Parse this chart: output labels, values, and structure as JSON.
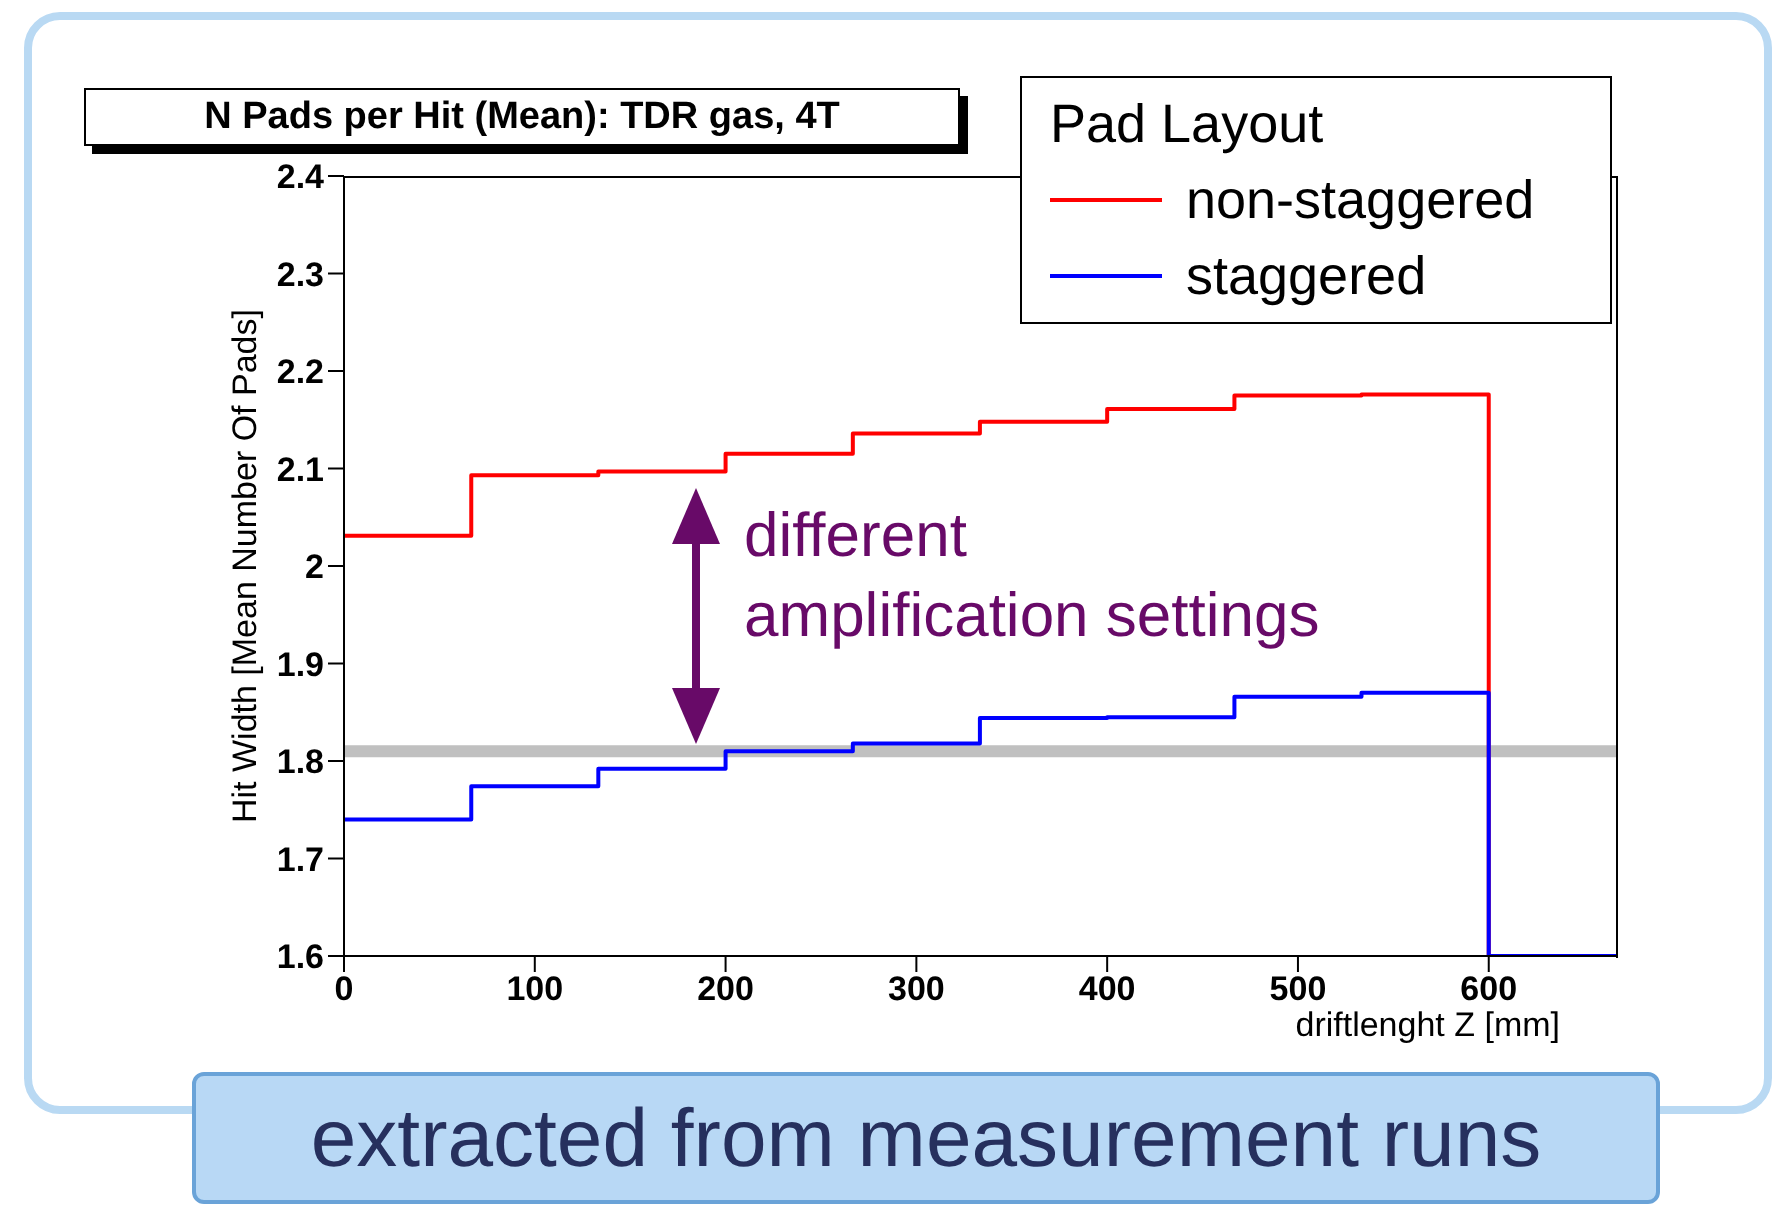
{
  "chart_data": {
    "type": "histogram",
    "title": "N Pads per Hit (Mean): TDR gas, 4T",
    "xlabel": "driftlenght Z [mm]",
    "ylabel": "Hit Width [Mean Number Of Pads]",
    "legend_title": "Pad Layout",
    "bins": [
      0,
      66.7,
      133.3,
      200,
      266.7,
      333.3,
      400,
      466.7,
      533.3,
      600,
      666.7
    ],
    "series": [
      {
        "name": "non-staggered",
        "color": "#ff0000",
        "values": [
          2.031,
          2.093,
          2.097,
          2.115,
          2.136,
          2.148,
          2.161,
          2.175,
          2.176,
          1.6
        ]
      },
      {
        "name": "staggered",
        "color": "#0000ff",
        "values": [
          1.74,
          1.774,
          1.792,
          1.81,
          1.818,
          1.844,
          1.845,
          1.866,
          1.87,
          1.6
        ]
      }
    ],
    "xlim": [
      0,
      666.7
    ],
    "xticks": [
      0,
      100,
      200,
      300,
      400,
      500,
      600
    ],
    "ylim": [
      1.6,
      2.4
    ],
    "yticks": [
      1.6,
      1.7,
      1.8,
      1.9,
      2,
      2.1,
      2.2,
      2.3,
      2.4
    ],
    "ref_lines": [
      {
        "axis": "y",
        "value": 1.81,
        "color": "#b0b0b0"
      }
    ],
    "annotations": [
      "different\namplification settings",
      "extracted from measurement runs"
    ],
    "legend": "top right",
    "grid": false
  }
}
